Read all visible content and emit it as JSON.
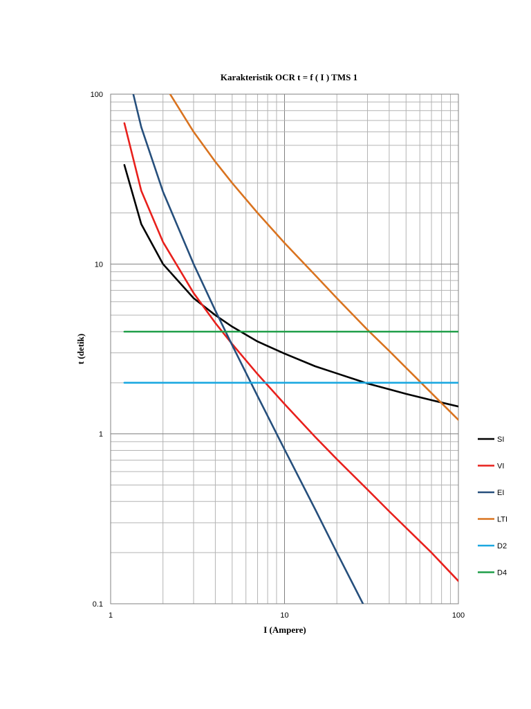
{
  "chart_data": {
    "type": "line",
    "title": "Karakteristik OCR t = f ( I ) TMS 1",
    "xlabel": "I (Ampere)",
    "ylabel": "t (detik)",
    "x_scale": "log",
    "y_scale": "log",
    "xlim": [
      1,
      100
    ],
    "ylim": [
      0.1,
      100
    ],
    "x_ticks": [
      "1",
      "10",
      "100"
    ],
    "y_ticks": [
      "0.1",
      "1",
      "10",
      "100"
    ],
    "grid": true,
    "legend_position": "right",
    "series": [
      {
        "name": "SI",
        "color": "#000000",
        "points": [
          [
            1.2,
            38.3
          ],
          [
            1.5,
            17.2
          ],
          [
            2,
            10
          ],
          [
            3,
            6.3
          ],
          [
            4,
            5
          ],
          [
            5,
            4.28
          ],
          [
            7,
            3.5
          ],
          [
            10,
            2.97
          ],
          [
            15,
            2.5
          ],
          [
            20,
            2.27
          ],
          [
            30,
            1.98
          ],
          [
            40,
            1.83
          ],
          [
            50,
            1.72
          ],
          [
            70,
            1.58
          ],
          [
            100,
            1.45
          ]
        ]
      },
      {
        "name": "VI",
        "color": "#e8201c",
        "points": [
          [
            1.2,
            67.5
          ],
          [
            1.5,
            27
          ],
          [
            2,
            13.5
          ],
          [
            3,
            6.75
          ],
          [
            4,
            4.5
          ],
          [
            5,
            3.38
          ],
          [
            7,
            2.25
          ],
          [
            10,
            1.5
          ],
          [
            15,
            0.96
          ],
          [
            20,
            0.71
          ],
          [
            30,
            0.47
          ],
          [
            40,
            0.35
          ],
          [
            50,
            0.28
          ],
          [
            70,
            0.2
          ],
          [
            100,
            0.136
          ]
        ]
      },
      {
        "name": "EI",
        "color": "#264f7c",
        "points": [
          [
            1.35,
            100
          ],
          [
            1.5,
            64
          ],
          [
            2,
            26.7
          ],
          [
            3,
            10
          ],
          [
            4,
            5.33
          ],
          [
            5,
            3.33
          ],
          [
            7,
            1.67
          ],
          [
            10,
            0.81
          ],
          [
            15,
            0.36
          ],
          [
            20,
            0.2
          ],
          [
            29,
            0.095
          ]
        ]
      },
      {
        "name": "LTI",
        "color": "#d9731f",
        "points": [
          [
            2.2,
            100
          ],
          [
            3,
            60
          ],
          [
            4,
            40
          ],
          [
            5,
            30
          ],
          [
            7,
            20
          ],
          [
            10,
            13.3
          ],
          [
            15,
            8.6
          ],
          [
            20,
            6.3
          ],
          [
            30,
            4.1
          ],
          [
            40,
            3.08
          ],
          [
            50,
            2.45
          ],
          [
            70,
            1.74
          ],
          [
            100,
            1.21
          ]
        ]
      },
      {
        "name": "D2",
        "color": "#1aa7e0",
        "points": [
          [
            1.2,
            2
          ],
          [
            100,
            2
          ]
        ]
      },
      {
        "name": "D4",
        "color": "#1f9e48",
        "points": [
          [
            1.2,
            4
          ],
          [
            100,
            4
          ]
        ]
      }
    ]
  }
}
